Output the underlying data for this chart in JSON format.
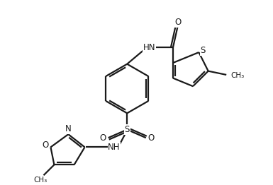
{
  "background_color": "#ffffff",
  "line_color": "#1a1a1a",
  "line_width": 1.6,
  "font_size": 8.5,
  "figsize": [
    3.85,
    2.62
  ],
  "dpi": 100,
  "xlim": [
    0,
    11
  ],
  "ylim": [
    0,
    7.5
  ]
}
